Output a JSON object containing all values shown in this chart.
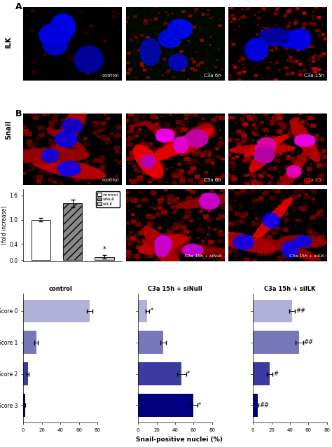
{
  "panel_A_label": "A",
  "panel_B_label": "B",
  "panel_A_row_label": "ILK",
  "panel_B_row_label": "Snail",
  "img_labels_A": [
    "control",
    "C3a 6h",
    "C3a 15h"
  ],
  "img_labels_B_top": [
    "control",
    "C3a 6h",
    "C3a 15h"
  ],
  "img_labels_B_bot": [
    "C3a 15h + siNull",
    "C3a 15h + siILK"
  ],
  "bar_values": [
    1.0,
    1.4,
    0.08
  ],
  "bar_errors": [
    0.05,
    0.1,
    0.04
  ],
  "bar_colors": [
    "white",
    "#888888",
    "#cccccc"
  ],
  "bar_hatch": [
    "",
    "///",
    ""
  ],
  "bar_ylabel": "ILK mRNA\n(fold increase)",
  "bar_yticks": [
    0.0,
    0.4,
    1.0,
    1.6
  ],
  "bar_legend_labels": [
    "control",
    "siNull",
    "siILK"
  ],
  "score_labels": [
    "Score 0",
    "Score 1",
    "Score 2",
    "Score 3"
  ],
  "score_colors": [
    "#b0b0d8",
    "#7878b8",
    "#3c3ca0",
    "#000080"
  ],
  "control_values": [
    72,
    14,
    5,
    2
  ],
  "control_errors": [
    3,
    2,
    1,
    0.5
  ],
  "sinull_values": [
    10,
    27,
    47,
    60
  ],
  "sinull_errors": [
    2,
    3,
    5,
    4
  ],
  "siilk_values": [
    42,
    50,
    18,
    5
  ],
  "siilk_errors": [
    3,
    4,
    3,
    1
  ],
  "snail_xlabel": "Snail-positive nuclei (%)",
  "snail_xlim": [
    0,
    80
  ],
  "snail_titles": [
    "control",
    "C3a 15h + siNull",
    "C3a 15h + siILK"
  ],
  "sinull_sigs": [
    "*",
    "",
    "*",
    "*"
  ],
  "siilk_sigs": [
    "##",
    "##",
    "#",
    "##"
  ],
  "C3a15h_label_color": "#ff4444"
}
